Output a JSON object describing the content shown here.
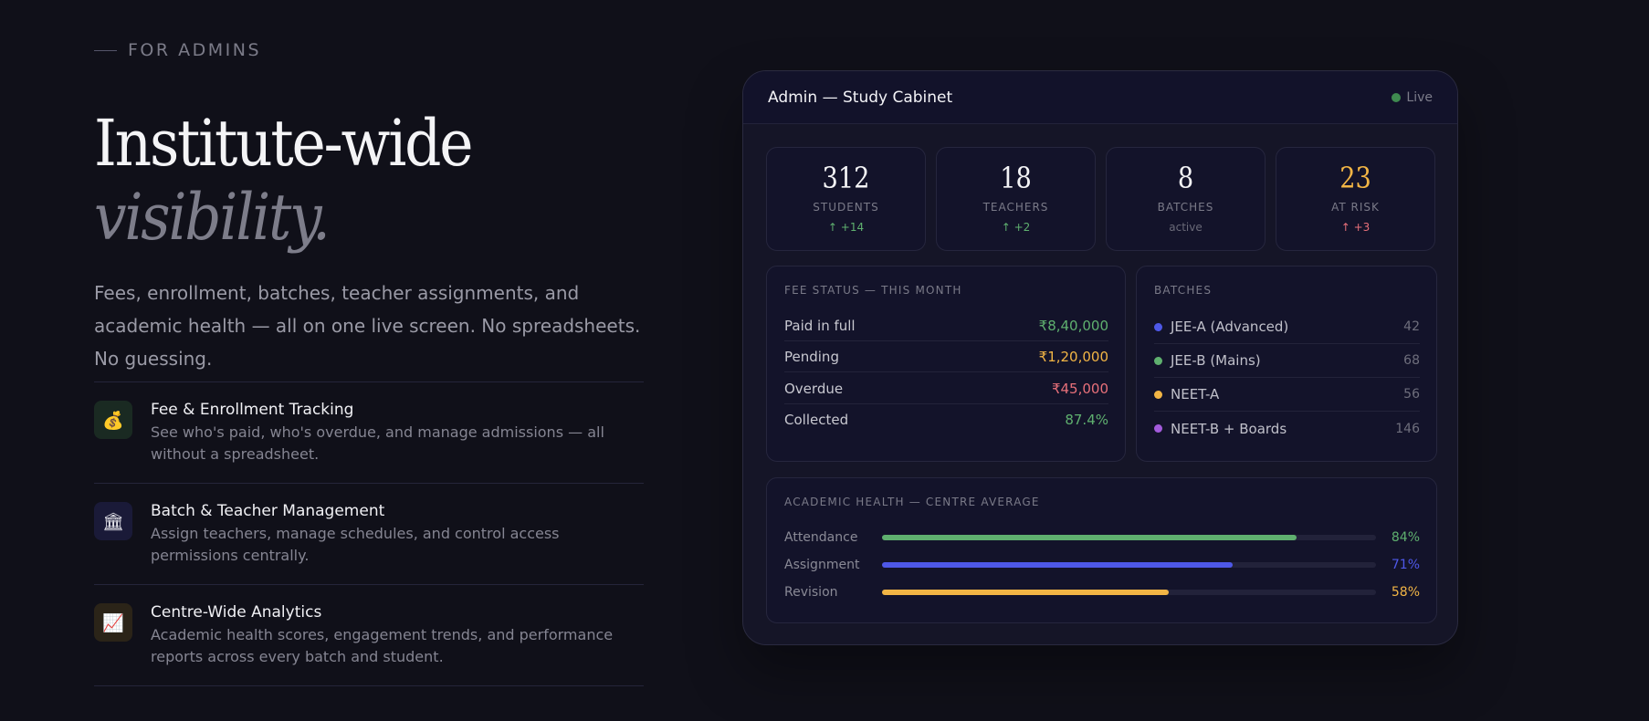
{
  "hero": {
    "eyebrow": "FOR ADMINS",
    "title_line1": "Institute-wide",
    "title_line2": "visibility.",
    "lede": "Fees, enrollment, batches, teacher assignments, and academic health — all on one live screen. No spreadsheets. No guessing."
  },
  "features": [
    {
      "icon": "money-bag-icon",
      "glyph": "💰",
      "title": "Fee & Enrollment Tracking",
      "desc": "See who's paid, who's overdue, and manage admissions — all without a spreadsheet.",
      "bg": "#1a2a22"
    },
    {
      "icon": "classical-building-icon",
      "glyph": "🏛",
      "title": "Batch & Teacher Management",
      "desc": "Assign teachers, manage schedules, and control access permissions centrally.",
      "bg": "#1a1a38"
    },
    {
      "icon": "chart-increasing-icon",
      "glyph": "📈",
      "title": "Centre-Wide Analytics",
      "desc": "Academic health scores, engagement trends, and performance reports across every batch and student.",
      "bg": "#2b2418"
    }
  ],
  "panel": {
    "title": "Admin — Study Cabinet",
    "live_label": "Live",
    "stats": [
      {
        "value": "312",
        "label": "STUDENTS",
        "delta": "↑ +14",
        "value_color": "#f4f4f6",
        "delta_color": "#5fb06f"
      },
      {
        "value": "18",
        "label": "TEACHERS",
        "delta": "↑ +2",
        "value_color": "#f4f4f6",
        "delta_color": "#5fb06f"
      },
      {
        "value": "8",
        "label": "BATCHES",
        "delta": "active",
        "value_color": "#f4f4f6",
        "delta_color": "#6a6a78"
      },
      {
        "value": "23",
        "label": "AT RISK",
        "delta": "↑ +3",
        "value_color": "#f2b545",
        "delta_color": "#e8707a"
      }
    ],
    "fee": {
      "heading": "FEE STATUS — THIS MONTH",
      "rows": [
        {
          "label": "Paid in full",
          "value": "₹8,40,000",
          "color": "#5fb06f"
        },
        {
          "label": "Pending",
          "value": "₹1,20,000",
          "color": "#f2b545"
        },
        {
          "label": "Overdue",
          "value": "₹45,000",
          "color": "#e8707a"
        },
        {
          "label": "Collected",
          "value": "87.4%",
          "color": "#5fb06f"
        }
      ]
    },
    "batches": {
      "heading": "BATCHES",
      "rows": [
        {
          "name": "JEE-A (Advanced)",
          "count": "42",
          "color": "#4e58e8"
        },
        {
          "name": "JEE-B (Mains)",
          "count": "68",
          "color": "#5fb06f"
        },
        {
          "name": "NEET-A",
          "count": "56",
          "color": "#f2b545"
        },
        {
          "name": "NEET-B + Boards",
          "count": "146",
          "color": "#a35bdc"
        }
      ]
    },
    "health": {
      "heading": "ACADEMIC HEALTH — CENTRE AVERAGE",
      "rows": [
        {
          "label": "Attendance",
          "value": "84%",
          "percent": 84,
          "color": "#5fb06f"
        },
        {
          "label": "Assignment",
          "value": "71%",
          "percent": 71,
          "color": "#4e58e8"
        },
        {
          "label": "Revision",
          "value": "58%",
          "percent": 58,
          "color": "#f2b545"
        }
      ]
    }
  }
}
